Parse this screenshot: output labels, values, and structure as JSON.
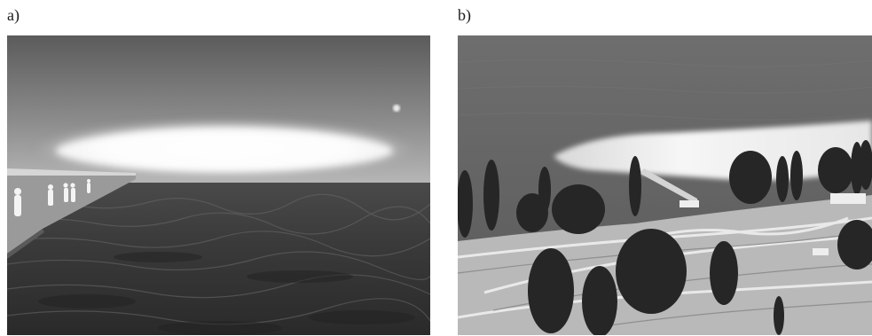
{
  "panels": [
    {
      "label": "a)",
      "description_icon": "sea-pier-cloud-photo"
    },
    {
      "label": "b)",
      "description_icon": "lakeside-landscape-cloud-photo"
    }
  ],
  "colors": {
    "background": "#ffffff",
    "label_text": "#1a1a1a"
  }
}
